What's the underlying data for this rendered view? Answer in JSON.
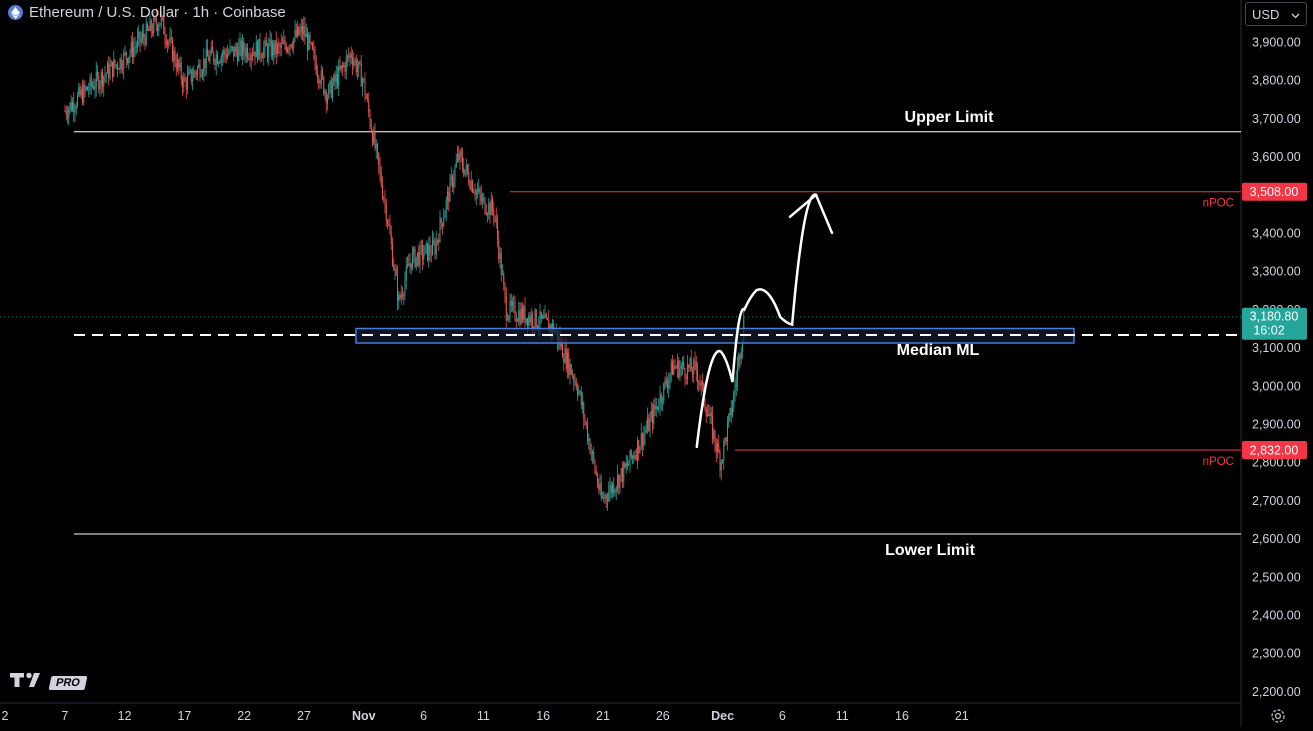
{
  "header": {
    "title": "Ethereum / U.S. Dollar · 1h · Coinbase",
    "currency": "USD"
  },
  "colors": {
    "background": "#000000",
    "candle_up": "#26a69a",
    "candle_down": "#ef5350",
    "price_badge": "#26a69a",
    "npoc": "#f23645",
    "zone_border": "#2962ff",
    "zone_fill": "#131a2e",
    "text": "#d1d4dc"
  },
  "logo": {
    "text": "PRO",
    "icon": "tradingview-logo-icon"
  },
  "chart_data": {
    "type": "candlestick",
    "symbol": "Ethereum / U.S. Dollar",
    "interval": "1h",
    "exchange": "Coinbase",
    "ylim": [
      2180,
      3960
    ],
    "y_ticks": [
      2200,
      2300,
      2400,
      2500,
      2600,
      2700,
      2800,
      2900,
      3000,
      3100,
      3200,
      3300,
      3400,
      3500,
      3600,
      3700,
      3800,
      3900
    ],
    "x_ticks": [
      "2",
      "7",
      "12",
      "17",
      "22",
      "27",
      "Nov",
      "6",
      "11",
      "16",
      "21",
      "26",
      "Dec",
      "6",
      "11",
      "16",
      "21"
    ],
    "current_price": "3,180.80",
    "countdown": "16:02",
    "levels": [
      {
        "label": "Upper Limit",
        "value": 3665
      },
      {
        "label": "Lower Limit",
        "value": 2612
      },
      {
        "label": "Median ML",
        "value": 3133
      }
    ],
    "npoc": [
      {
        "label": "nPOC",
        "value": 3508,
        "badge": "3,508.00"
      },
      {
        "label": "nPOC",
        "value": 2832,
        "badge": "2,832.00"
      }
    ],
    "zone": {
      "low": 3112,
      "high": 3150
    },
    "path_anchors": [
      {
        "x": "Oct 7",
        "close": 3720
      },
      {
        "x": "Oct 9",
        "close": 3780
      },
      {
        "x": "Oct 12",
        "close": 3860
      },
      {
        "x": "Oct 15",
        "close": 3960
      },
      {
        "x": "Oct 17",
        "close": 3790
      },
      {
        "x": "Oct 19",
        "close": 3860
      },
      {
        "x": "Oct 22",
        "close": 3880
      },
      {
        "x": "Oct 25",
        "close": 3880
      },
      {
        "x": "Oct 27",
        "close": 3930
      },
      {
        "x": "Oct 29",
        "close": 3760
      },
      {
        "x": "Oct 31",
        "close": 3870
      },
      {
        "x": "Nov 1",
        "close": 3800
      },
      {
        "x": "Nov 3",
        "close": 3450
      },
      {
        "x": "Nov 4",
        "close": 3220
      },
      {
        "x": "Nov 5",
        "close": 3330
      },
      {
        "x": "Nov 7",
        "close": 3360
      },
      {
        "x": "Nov 9",
        "close": 3600
      },
      {
        "x": "Nov 11",
        "close": 3480
      },
      {
        "x": "Nov 12",
        "close": 3460
      },
      {
        "x": "Nov 13",
        "close": 3200
      },
      {
        "x": "Nov 15",
        "close": 3180
      },
      {
        "x": "Nov 17",
        "close": 3150
      },
      {
        "x": "Nov 19",
        "close": 3000
      },
      {
        "x": "Nov 20",
        "close": 2850
      },
      {
        "x": "Nov 21",
        "close": 2700
      },
      {
        "x": "Nov 23",
        "close": 2780
      },
      {
        "x": "Nov 25",
        "close": 2900
      },
      {
        "x": "Nov 27",
        "close": 3050
      },
      {
        "x": "Nov 29",
        "close": 3040
      },
      {
        "x": "Dec 1",
        "close": 2800
      },
      {
        "x": "Dec 2",
        "close": 2950
      },
      {
        "x": "Dec 3",
        "close": 3180
      }
    ],
    "projection": [
      {
        "x": "Nov 29",
        "y": 2840
      },
      {
        "x": "Dec 1",
        "y": 3090
      },
      {
        "x": "Dec 2",
        "y": 3010
      },
      {
        "x": "Dec 3",
        "y": 3200
      },
      {
        "x": "Dec 4",
        "y": 3250
      },
      {
        "x": "Dec 6",
        "y": 3180
      },
      {
        "x": "Dec 7",
        "y": 3160
      },
      {
        "x": "Dec 9",
        "y": 3500
      }
    ]
  }
}
